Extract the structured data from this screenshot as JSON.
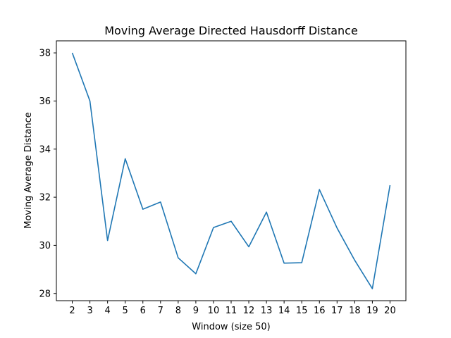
{
  "chart_data": {
    "type": "line",
    "title": "Moving Average Directed Hausdorff Distance",
    "xlabel": "Window (size 50)",
    "ylabel": "Moving Average Distance",
    "x": [
      2,
      3,
      4,
      5,
      6,
      7,
      8,
      9,
      10,
      11,
      12,
      13,
      14,
      15,
      16,
      17,
      18,
      19,
      20
    ],
    "series": [
      {
        "color": "#1f77b4",
        "values": [
          38.0,
          36.0,
          30.2,
          33.6,
          31.5,
          31.8,
          29.48,
          28.82,
          30.74,
          31.0,
          29.94,
          31.38,
          29.26,
          29.28,
          32.32,
          30.72,
          29.38,
          28.2,
          32.5
        ]
      }
    ],
    "xlim": [
      1.1,
      20.9
    ],
    "ylim": [
      27.7,
      38.5
    ],
    "xticks": [
      "2",
      "3",
      "4",
      "5",
      "6",
      "7",
      "8",
      "9",
      "10",
      "11",
      "12",
      "13",
      "14",
      "15",
      "16",
      "17",
      "18",
      "19",
      "20"
    ],
    "yticks": [
      "28",
      "30",
      "32",
      "34",
      "36",
      "38"
    ],
    "grid": false,
    "legend": "none"
  }
}
